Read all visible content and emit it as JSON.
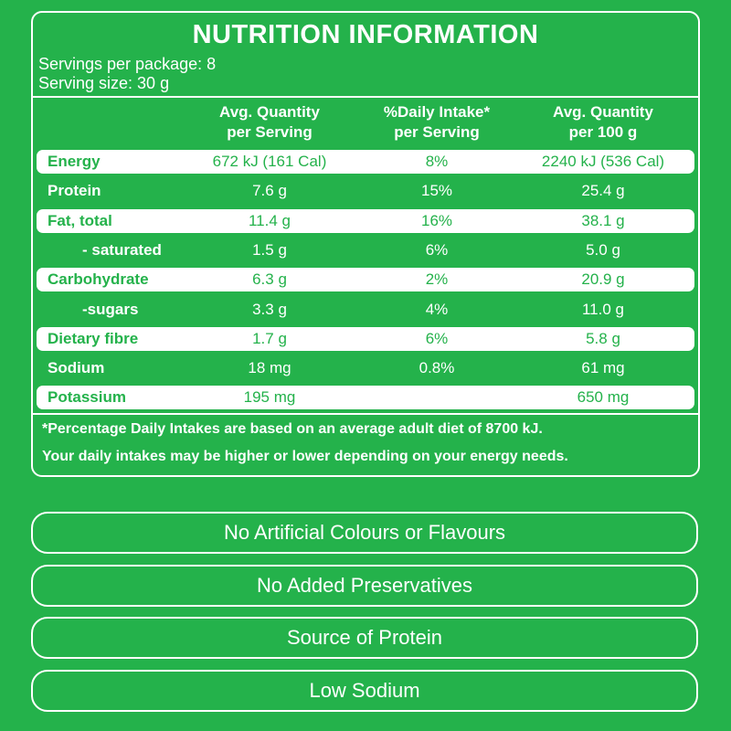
{
  "header": {
    "title": "NUTRITION INFORMATION",
    "servings_per_package": "Servings per package: 8",
    "serving_size": "Serving size: 30 g"
  },
  "table": {
    "columns": [
      [
        "Avg. Quantity",
        "per Serving"
      ],
      [
        "%Daily Intake*",
        "per Serving"
      ],
      [
        "Avg. Quantity",
        "per 100 g"
      ]
    ],
    "rows": [
      {
        "label": "Energy",
        "per_serving": "672 kJ (161 Cal)",
        "daily_intake": "8%",
        "per_100g": "2240 kJ (536 Cal)"
      },
      {
        "label": "Protein",
        "per_serving": "7.6 g",
        "daily_intake": "15%",
        "per_100g": "25.4 g"
      },
      {
        "label": "Fat, total",
        "per_serving": "11.4 g",
        "daily_intake": "16%",
        "per_100g": "38.1 g"
      },
      {
        "label": "- saturated",
        "per_serving": "1.5 g",
        "daily_intake": "6%",
        "per_100g": "5.0 g"
      },
      {
        "label": "Carbohydrate",
        "per_serving": "6.3 g",
        "daily_intake": "2%",
        "per_100g": "20.9 g"
      },
      {
        "label": "-sugars",
        "per_serving": "3.3 g",
        "daily_intake": "4%",
        "per_100g": "11.0 g"
      },
      {
        "label": "Dietary fibre",
        "per_serving": "1.7 g",
        "daily_intake": "6%",
        "per_100g": "5.8 g"
      },
      {
        "label": "Sodium",
        "per_serving": "18 mg",
        "daily_intake": "0.8%",
        "per_100g": "61 mg"
      },
      {
        "label": "Potassium",
        "per_serving": "195 mg",
        "per_100g": "650 mg"
      }
    ]
  },
  "footnote": [
    "*Percentage Daily Intakes are based on an average adult diet of 8700 kJ.",
    "Your daily intakes may be higher or lower depending on your energy needs."
  ],
  "claims": [
    "No Artificial Colours or Flavours",
    "No Added Preservatives",
    "Source of Protein",
    "Low Sodium"
  ]
}
